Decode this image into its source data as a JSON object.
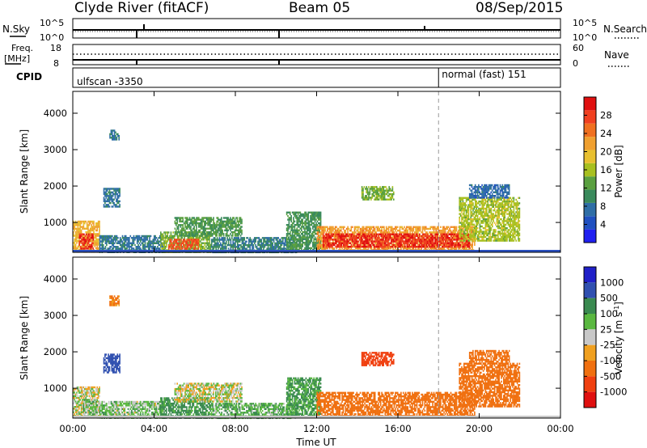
{
  "header": {
    "station": "Clyde River (fitACF)",
    "beam": "Beam 05",
    "date": "08/Sep/2015"
  },
  "noise_panel": {
    "left_label": "N.Sky",
    "right_label": "N.Search",
    "left_ticks": [
      "10^5",
      "10^0"
    ],
    "right_ticks": [
      "10^5",
      "10^0"
    ]
  },
  "freq_panel": {
    "left_label_line1": "Freq.",
    "left_label_line2": "[MHz]",
    "right_label": "Nave",
    "left_ticks": [
      "18",
      "8"
    ],
    "right_ticks": [
      "60",
      "0"
    ]
  },
  "cpid_panel": {
    "label": "CPID",
    "segment1": "ulfscan -3350",
    "segment2": "normal (fast) 151",
    "switch_time_hours": 18.0
  },
  "colors": {
    "power_scale": [
      "#2020f0",
      "#2050c0",
      "#2f6ea6",
      "#3a8a5c",
      "#5aa040",
      "#a8c020",
      "#e8c030",
      "#f0a030",
      "#f07020",
      "#f04020",
      "#e01010"
    ],
    "velocity_scale": [
      "#2020c8",
      "#3050b0",
      "#3a8a50",
      "#5ab840",
      "#c8c8c8",
      "#f0a020",
      "#f07010",
      "#f04010",
      "#e01010"
    ]
  },
  "chart_data": [
    {
      "type": "heatmap",
      "name": "power",
      "x_unit": "hours UT",
      "xlim": [
        0,
        24
      ],
      "xticks": [
        "00:00",
        "04:00",
        "08:00",
        "12:00",
        "16:00",
        "20:00",
        "00:00"
      ],
      "xtick_values": [
        0,
        4,
        8,
        12,
        16,
        20,
        24
      ],
      "ylabel": "Slant Range [km]",
      "ylim": [
        180,
        4600
      ],
      "yticks": [
        1000,
        2000,
        3000,
        4000
      ],
      "colorbar_label": "Power [dB]",
      "colorbar_range": [
        0,
        32
      ],
      "colorbar_ticks": [
        4,
        8,
        12,
        16,
        20,
        24,
        28
      ],
      "echo_regions": [
        {
          "t0": 0.0,
          "t1": 1.3,
          "r0": 200,
          "r1": 1050,
          "level": 20
        },
        {
          "t0": 0.3,
          "t1": 1.0,
          "r0": 300,
          "r1": 700,
          "level": 29
        },
        {
          "t0": 1.5,
          "t1": 2.3,
          "r0": 1450,
          "r1": 1950,
          "level": 8
        },
        {
          "t0": 1.8,
          "t1": 2.3,
          "r0": 3300,
          "r1": 3550,
          "level": 8
        },
        {
          "t0": 1.3,
          "t1": 4.5,
          "r0": 200,
          "r1": 650,
          "level": 8
        },
        {
          "t0": 4.3,
          "t1": 6.8,
          "r0": 200,
          "r1": 750,
          "level": 14
        },
        {
          "t0": 4.7,
          "t1": 6.2,
          "r0": 280,
          "r1": 550,
          "level": 27
        },
        {
          "t0": 5.0,
          "t1": 8.3,
          "r0": 650,
          "r1": 1150,
          "level": 12
        },
        {
          "t0": 6.8,
          "t1": 11.0,
          "r0": 200,
          "r1": 600,
          "level": 9
        },
        {
          "t0": 10.5,
          "t1": 12.2,
          "r0": 250,
          "r1": 1300,
          "level": 11
        },
        {
          "t0": 12.0,
          "t1": 19.8,
          "r0": 250,
          "r1": 900,
          "level": 22
        },
        {
          "t0": 12.3,
          "t1": 19.5,
          "r0": 350,
          "r1": 700,
          "level": 29
        },
        {
          "t0": 14.2,
          "t1": 15.8,
          "r0": 1650,
          "r1": 2000,
          "level": 14
        },
        {
          "t0": 19.0,
          "t1": 22.0,
          "r0": 500,
          "r1": 1700,
          "level": 16
        },
        {
          "t0": 19.5,
          "t1": 21.5,
          "r0": 1700,
          "r1": 2050,
          "level": 7
        }
      ]
    },
    {
      "type": "heatmap",
      "name": "velocity",
      "x_unit": "hours UT",
      "xlim": [
        0,
        24
      ],
      "xticks": [
        "00:00",
        "04:00",
        "08:00",
        "12:00",
        "16:00",
        "20:00",
        "00:00"
      ],
      "xtick_values": [
        0,
        4,
        8,
        12,
        16,
        20,
        24
      ],
      "xlabel": "Time UT",
      "ylabel": "Slant Range [km]",
      "ylim": [
        180,
        4600
      ],
      "yticks": [
        1000,
        2000,
        3000,
        4000
      ],
      "colorbar_label": "Velocity [m s^-1]",
      "colorbar_ticks": [
        "1000",
        "500",
        "100",
        "25",
        "-25",
        "-100",
        "-500",
        "-1000"
      ],
      "echo_regions": [
        {
          "t0": 0.0,
          "t1": 1.3,
          "r0": 200,
          "r1": 1050,
          "v": 0
        },
        {
          "t0": 0.5,
          "t1": 1.2,
          "r0": 300,
          "r1": 700,
          "v": 60
        },
        {
          "t0": 1.5,
          "t1": 2.3,
          "r0": 1450,
          "r1": 1950,
          "v": 600
        },
        {
          "t0": 1.8,
          "t1": 2.3,
          "r0": 3300,
          "r1": 3550,
          "v": -150
        },
        {
          "t0": 1.3,
          "t1": 4.5,
          "r0": 200,
          "r1": 650,
          "v": 50
        },
        {
          "t0": 4.3,
          "t1": 6.8,
          "r0": 200,
          "r1": 750,
          "v": 150
        },
        {
          "t0": 5.0,
          "t1": 8.3,
          "r0": 650,
          "r1": 1150,
          "v": 0
        },
        {
          "t0": 6.8,
          "t1": 11.0,
          "r0": 200,
          "r1": 600,
          "v": 80
        },
        {
          "t0": 10.5,
          "t1": 12.2,
          "r0": 250,
          "r1": 1300,
          "v": 120
        },
        {
          "t0": 12.0,
          "t1": 19.8,
          "r0": 250,
          "r1": 900,
          "v": -250
        },
        {
          "t0": 14.2,
          "t1": 15.8,
          "r0": 1650,
          "r1": 2000,
          "v": -600
        },
        {
          "t0": 19.0,
          "t1": 22.0,
          "r0": 500,
          "r1": 1700,
          "v": -300
        },
        {
          "t0": 19.5,
          "t1": 21.5,
          "r0": 1700,
          "r1": 2050,
          "v": -200
        }
      ]
    }
  ]
}
